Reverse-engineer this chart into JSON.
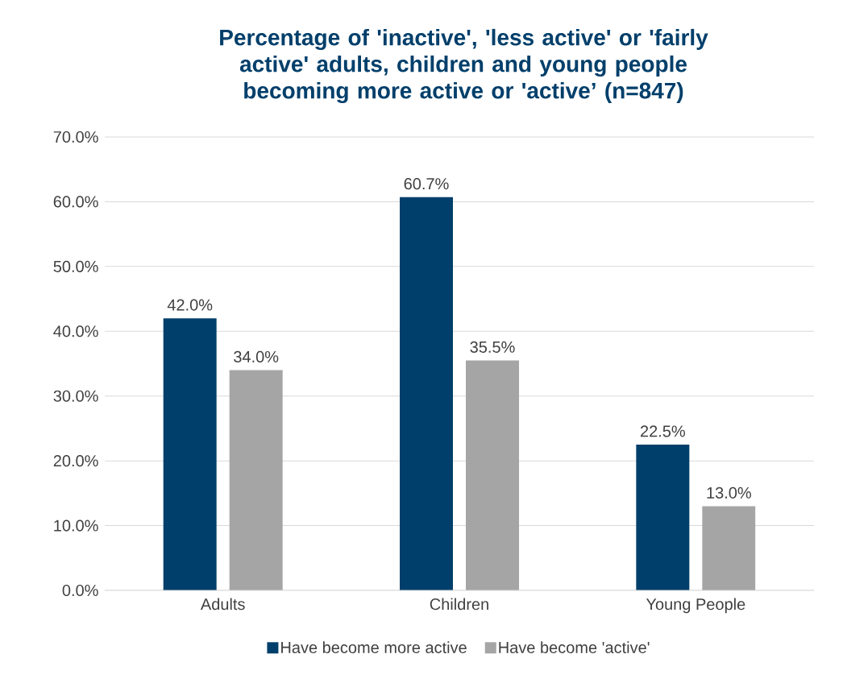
{
  "chart_data": {
    "type": "bar",
    "title": "Percentage of 'inactive', 'less active' or 'fairly active' adults, children and young people becoming more active or 'active’ (n=847)",
    "categories": [
      "Adults",
      "Children",
      "Young People"
    ],
    "series": [
      {
        "name": "Have become more active",
        "color": "#003f6b",
        "values": [
          42.0,
          60.7,
          22.5
        ],
        "value_labels": [
          "42.0%",
          "60.7%",
          "22.5%"
        ]
      },
      {
        "name": "Have become 'active'",
        "color": "#a5a5a5",
        "values": [
          34.0,
          35.5,
          13.0
        ],
        "value_labels": [
          "34.0%",
          "35.5%",
          "13.0%"
        ]
      }
    ],
    "ylim": [
      0,
      70
    ],
    "yticks": [
      {
        "value": 0,
        "label": "0.0%"
      },
      {
        "value": 10,
        "label": "10.0%"
      },
      {
        "value": 20,
        "label": "20.0%"
      },
      {
        "value": 30,
        "label": "30.0%"
      },
      {
        "value": 40,
        "label": "40.0%"
      },
      {
        "value": 50,
        "label": "50.0%"
      },
      {
        "value": 60,
        "label": "60.0%"
      },
      {
        "value": 70,
        "label": "70.0%"
      }
    ],
    "grid": "y",
    "legend": "bottom"
  }
}
